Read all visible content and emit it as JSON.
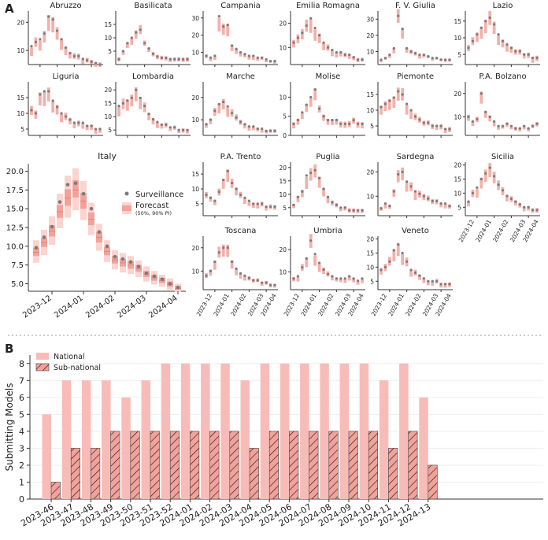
{
  "panel_a": {
    "label": "A"
  },
  "panel_b": {
    "label": "B"
  },
  "colors": {
    "band50": "#f2a29b",
    "band90": "#fbd3cf",
    "point": "#7b7b7b",
    "national": "#f8bcb8",
    "subnational": "#f2a29b",
    "hatch": "#111111"
  },
  "chart_data": [
    {
      "type": "line",
      "title": "Italy",
      "x_ticklabels": [
        "2023-12",
        "2024-01",
        "2024-02",
        "2024-03",
        "2024-04"
      ],
      "ylim": [
        4,
        21
      ],
      "y_ticks": [
        5.0,
        7.5,
        10.0,
        12.5,
        15.0,
        17.5,
        20.0
      ],
      "y_ticklabels": [
        "5.0",
        "7.5",
        "10.0",
        "12.5",
        "15.0",
        "17.5",
        "20.0"
      ],
      "legend": {
        "surveillance": "Surveillance",
        "forecast": "Forecast",
        "forecast_note": "(50%, 90% PI)"
      },
      "surveillance": [
        9.8,
        11.2,
        12.6,
        15.9,
        18.2,
        18.4,
        17.0,
        15.0,
        11.9,
        10.0,
        8.6,
        8.3,
        7.9,
        7.3,
        6.4,
        6.0,
        5.6,
        5.0,
        4.5
      ],
      "forecast_median": [
        9.2,
        10.5,
        12.0,
        14.6,
        16.4,
        17.5,
        16.0,
        13.6,
        11.2,
        9.3,
        8.2,
        7.8,
        7.5,
        7.0,
        6.3,
        5.8,
        5.4,
        4.9,
        4.4
      ],
      "pi50": [
        [
          8.7,
          9.8
        ],
        [
          9.9,
          11.1
        ],
        [
          11.3,
          12.8
        ],
        [
          13.8,
          15.5
        ],
        [
          15.4,
          17.6
        ],
        [
          16.5,
          18.8
        ],
        [
          15.0,
          17.1
        ],
        [
          12.8,
          14.5
        ],
        [
          10.5,
          11.9
        ],
        [
          8.8,
          9.9
        ],
        [
          7.7,
          8.7
        ],
        [
          7.3,
          8.3
        ],
        [
          7.0,
          8.0
        ],
        [
          6.6,
          7.5
        ],
        [
          5.9,
          6.7
        ],
        [
          5.4,
          6.2
        ],
        [
          5.1,
          5.8
        ],
        [
          4.6,
          5.3
        ],
        [
          4.2,
          4.7
        ]
      ],
      "pi90": [
        [
          7.8,
          10.8
        ],
        [
          8.8,
          12.2
        ],
        [
          10.2,
          14.0
        ],
        [
          12.4,
          17.0
        ],
        [
          13.8,
          19.4
        ],
        [
          14.8,
          20.4
        ],
        [
          13.5,
          18.7
        ],
        [
          11.5,
          15.8
        ],
        [
          9.4,
          13.0
        ],
        [
          7.9,
          10.8
        ],
        [
          6.9,
          9.5
        ],
        [
          6.5,
          9.1
        ],
        [
          6.3,
          8.7
        ],
        [
          5.9,
          8.1
        ],
        [
          5.3,
          7.3
        ],
        [
          4.9,
          6.7
        ],
        [
          4.6,
          6.2
        ],
        [
          4.2,
          5.7
        ],
        [
          3.9,
          5.0
        ]
      ]
    },
    {
      "type": "line",
      "title": "Abruzzo",
      "yticks": [
        10,
        20
      ],
      "ylim": [
        5,
        24
      ],
      "surveillance": [
        11.5,
        13,
        14,
        16,
        22,
        21,
        17,
        14,
        11,
        9,
        8,
        8,
        7,
        6.5,
        6,
        5.5,
        5
      ]
    },
    {
      "type": "line",
      "title": "Basilicata",
      "yticks": [
        5,
        10,
        15
      ],
      "ylim": [
        0,
        20
      ],
      "surveillance": [
        2,
        5,
        8,
        10,
        12,
        13,
        8,
        6,
        4,
        3,
        2.5,
        2.5,
        2,
        2,
        2,
        2,
        2
      ]
    },
    {
      "type": "line",
      "title": "Campania",
      "yticks": [
        10,
        20,
        30
      ],
      "ylim": [
        3,
        34
      ],
      "surveillance": [
        8,
        7,
        8,
        31,
        25,
        26,
        14,
        12,
        10,
        9,
        8,
        8,
        7,
        7,
        6,
        5,
        5
      ]
    },
    {
      "type": "line",
      "title": "Emilia Romagna",
      "yticks": [
        10,
        20
      ],
      "ylim": [
        3,
        25
      ],
      "surveillance": [
        12,
        14,
        16,
        19,
        22,
        18,
        15,
        12,
        10,
        9,
        8,
        8,
        7,
        7,
        6,
        5,
        5
      ]
    },
    {
      "type": "line",
      "title": "F. V. Giulia",
      "yticks": [
        10,
        20,
        30
      ],
      "ylim": [
        2,
        35
      ],
      "surveillance": [
        5,
        6,
        8,
        12,
        32,
        24,
        12,
        10,
        9,
        8,
        8,
        7,
        6,
        6,
        5,
        5,
        5
      ]
    },
    {
      "type": "line",
      "title": "Lazio",
      "yticks": [
        5,
        10,
        15
      ],
      "ylim": [
        2,
        18
      ],
      "surveillance": [
        7,
        9,
        11,
        13,
        15,
        16,
        14,
        11,
        9,
        8,
        7,
        6,
        6,
        5,
        5,
        4,
        4
      ]
    },
    {
      "type": "line",
      "title": "Liguria",
      "yticks": [
        5,
        10,
        15
      ],
      "ylim": [
        3,
        20
      ],
      "surveillance": [
        11,
        10,
        16,
        17,
        17,
        14,
        12,
        10,
        9,
        8,
        7,
        7,
        7,
        6,
        6,
        5,
        5
      ]
    },
    {
      "type": "line",
      "title": "Lombardia",
      "yticks": [
        5,
        10,
        15,
        20
      ],
      "ylim": [
        3,
        23
      ],
      "surveillance": [
        14,
        15,
        16,
        17,
        20,
        17,
        14,
        11,
        9,
        8,
        7,
        7,
        6,
        6,
        5,
        5,
        5
      ]
    },
    {
      "type": "line",
      "title": "Marche",
      "yticks": [
        10,
        20
      ],
      "ylim": [
        3,
        27
      ],
      "surveillance": [
        8,
        10,
        14,
        17,
        18,
        16,
        13,
        11,
        9,
        8,
        7,
        7,
        6,
        6,
        5,
        5,
        5
      ]
    },
    {
      "type": "line",
      "title": "Molise",
      "yticks": [
        0,
        5,
        10
      ],
      "ylim": [
        0,
        14
      ],
      "surveillance": [
        3,
        4,
        6,
        8,
        10,
        12,
        7,
        5,
        4,
        4,
        4,
        3,
        3,
        3,
        4,
        3,
        3
      ]
    },
    {
      "type": "line",
      "title": "Piemonte",
      "yticks": [
        5,
        10,
        15
      ],
      "ylim": [
        2,
        19
      ],
      "surveillance": [
        11,
        12,
        13,
        14,
        16,
        15,
        12,
        10,
        8,
        7,
        6,
        6,
        5,
        5,
        5,
        4,
        4
      ]
    },
    {
      "type": "line",
      "title": "P.A. Bolzano",
      "yticks": [
        10,
        20
      ],
      "ylim": [
        2,
        25
      ],
      "surveillance": [
        10,
        8,
        9,
        20,
        12,
        10,
        8,
        6,
        6,
        7,
        6,
        5,
        5,
        6,
        5,
        6,
        7
      ]
    },
    {
      "type": "line",
      "title": "P.A. Trento",
      "yticks": [
        5,
        10,
        15
      ],
      "ylim": [
        1,
        19
      ],
      "surveillance": [
        8,
        7,
        6,
        9,
        13,
        16,
        12,
        10,
        8,
        7,
        6,
        5,
        5,
        5,
        4,
        4,
        4
      ]
    },
    {
      "type": "line",
      "title": "Puglia",
      "yticks": [
        5,
        10,
        15,
        20
      ],
      "ylim": [
        2,
        22
      ],
      "surveillance": [
        6,
        9,
        11,
        17,
        18,
        19,
        16,
        12,
        9,
        7,
        6,
        5,
        5,
        4,
        4,
        4,
        4
      ]
    },
    {
      "type": "line",
      "title": "Sardegna",
      "yticks": [
        10,
        20
      ],
      "ylim": [
        2,
        24
      ],
      "surveillance": [
        5,
        7,
        6,
        12,
        19,
        20,
        16,
        14,
        12,
        11,
        10,
        9,
        8,
        8,
        7,
        7,
        6
      ]
    },
    {
      "type": "line",
      "title": "Sicilia",
      "yticks": [
        5,
        10,
        15,
        20
      ],
      "ylim": [
        2,
        21
      ],
      "surveillance": [
        7,
        10,
        12,
        15,
        17,
        19,
        16,
        13,
        11,
        9,
        8,
        7,
        6,
        5,
        5,
        4,
        4
      ]
    },
    {
      "type": "line",
      "title": "Toscana",
      "yticks": [
        10,
        20
      ],
      "ylim": [
        2,
        25
      ],
      "surveillance": [
        8,
        10,
        14,
        18,
        20,
        20,
        14,
        11,
        9,
        8,
        7,
        6,
        6,
        5,
        5,
        4,
        4
      ]
    },
    {
      "type": "line",
      "title": "Umbria",
      "yticks": [
        10,
        20
      ],
      "ylim": [
        2,
        26
      ],
      "surveillance": [
        7,
        8,
        12,
        16,
        24,
        18,
        14,
        11,
        9,
        8,
        7,
        7,
        7,
        8,
        7,
        6,
        7
      ]
    },
    {
      "type": "line",
      "title": "Veneto",
      "yticks": [
        5,
        10,
        15,
        20
      ],
      "ylim": [
        2,
        21
      ],
      "surveillance": [
        9,
        10,
        12,
        16,
        18,
        15,
        12,
        9,
        8,
        7,
        6,
        5,
        5,
        5,
        4,
        4,
        4
      ]
    },
    {
      "type": "bar",
      "categories": [
        "2023-46",
        "2023-47",
        "2023-48",
        "2023-49",
        "2023-50",
        "2023-51",
        "2023-52",
        "2024-01",
        "2024-02",
        "2024-03",
        "2024-04",
        "2024-05",
        "2024-06",
        "2024-07",
        "2024-08",
        "2024-09",
        "2024-10",
        "2024-11",
        "2024-12",
        "2024-13"
      ],
      "series": [
        {
          "name": "National",
          "values": [
            5,
            7,
            7,
            7,
            6,
            7,
            8,
            8,
            8,
            8,
            7,
            8,
            8,
            8,
            8,
            8,
            8,
            7,
            8,
            6
          ]
        },
        {
          "name": "Sub-national",
          "values": [
            1,
            3,
            3,
            4,
            4,
            4,
            4,
            4,
            4,
            4,
            3,
            4,
            4,
            4,
            4,
            4,
            4,
            3,
            4,
            2
          ]
        }
      ],
      "ylabel": "Submitting Models",
      "ylim": [
        0,
        8.5
      ],
      "y_ticks": [
        0,
        1,
        2,
        3,
        4,
        5,
        6,
        7,
        8
      ],
      "legend_position": "top-left",
      "grid": true
    }
  ]
}
